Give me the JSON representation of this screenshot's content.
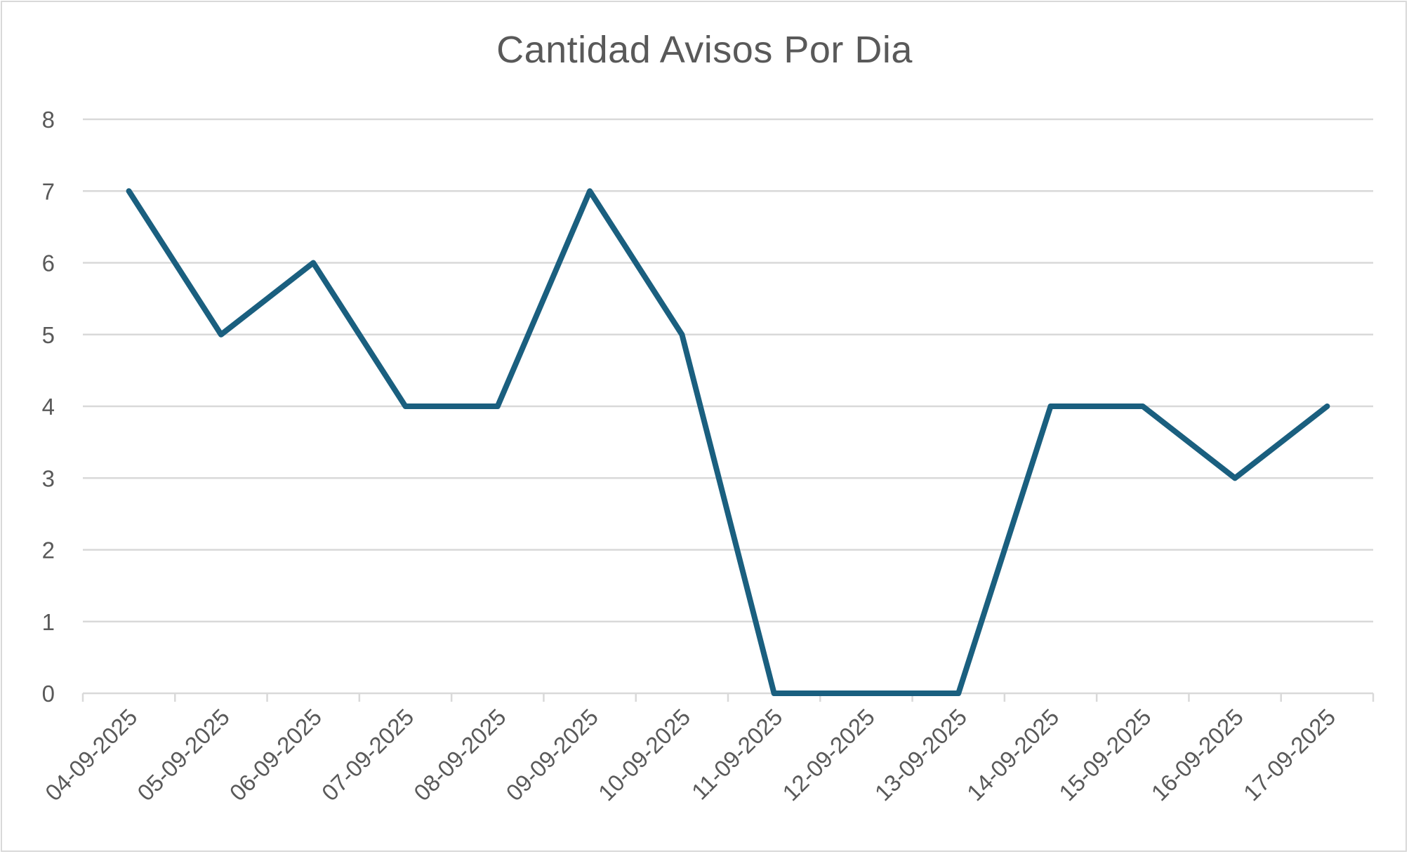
{
  "chart_data": {
    "type": "line",
    "title": "Cantidad Avisos Por Dia",
    "xlabel": "",
    "ylabel": "",
    "categories": [
      "04-09-2025",
      "05-09-2025",
      "06-09-2025",
      "07-09-2025",
      "08-09-2025",
      "09-09-2025",
      "10-09-2025",
      "11-09-2025",
      "12-09-2025",
      "13-09-2025",
      "14-09-2025",
      "15-09-2025",
      "16-09-2025",
      "17-09-2025"
    ],
    "series": [
      {
        "values": [
          7,
          5,
          6,
          4,
          4,
          7,
          5,
          0,
          0,
          0,
          4,
          4,
          3,
          4
        ],
        "color": "#1a5f7f"
      }
    ],
    "ylim": [
      0,
      8
    ],
    "yticks": [
      "0",
      "1",
      "2",
      "3",
      "4",
      "5",
      "6",
      "7",
      "8"
    ],
    "grid": true,
    "legend": "none"
  }
}
